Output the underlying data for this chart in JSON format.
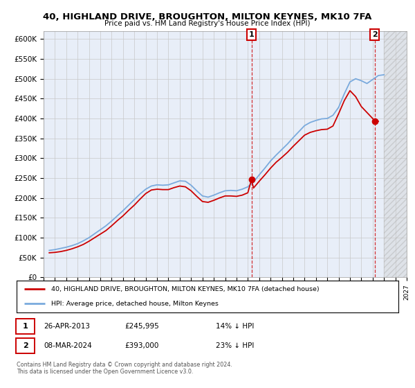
{
  "title": "40, HIGHLAND DRIVE, BROUGHTON, MILTON KEYNES, MK10 7FA",
  "subtitle": "Price paid vs. HM Land Registry's House Price Index (HPI)",
  "legend_label_red": "40, HIGHLAND DRIVE, BROUGHTON, MILTON KEYNES, MK10 7FA (detached house)",
  "legend_label_blue": "HPI: Average price, detached house, Milton Keynes",
  "annotation1_date": "26-APR-2013",
  "annotation1_price": "£245,995",
  "annotation1_pct": "14% ↓ HPI",
  "annotation2_date": "08-MAR-2024",
  "annotation2_price": "£393,000",
  "annotation2_pct": "23% ↓ HPI",
  "footnote": "Contains HM Land Registry data © Crown copyright and database right 2024.\nThis data is licensed under the Open Government Licence v3.0.",
  "ylim": [
    0,
    620000
  ],
  "yticks": [
    0,
    50000,
    100000,
    150000,
    200000,
    250000,
    300000,
    350000,
    400000,
    450000,
    500000,
    550000,
    600000
  ],
  "bg_color": "#e8eef8",
  "grid_color": "#c8c8c8",
  "red_color": "#cc0000",
  "blue_color": "#7aaadd",
  "sale1_x": 2013.32,
  "sale1_y": 245995,
  "sale2_x": 2024.18,
  "sale2_y": 393000,
  "hpi_x": [
    1995.5,
    1996.0,
    1996.5,
    1997.0,
    1997.5,
    1998.0,
    1998.5,
    1999.0,
    1999.5,
    2000.0,
    2000.5,
    2001.0,
    2001.5,
    2002.0,
    2002.5,
    2003.0,
    2003.5,
    2004.0,
    2004.5,
    2005.0,
    2005.5,
    2006.0,
    2006.5,
    2007.0,
    2007.5,
    2008.0,
    2008.5,
    2009.0,
    2009.5,
    2010.0,
    2010.5,
    2011.0,
    2011.5,
    2012.0,
    2012.5,
    2013.0,
    2013.5,
    2014.0,
    2014.5,
    2015.0,
    2015.5,
    2016.0,
    2016.5,
    2017.0,
    2017.5,
    2018.0,
    2018.5,
    2019.0,
    2019.5,
    2020.0,
    2020.5,
    2021.0,
    2021.5,
    2022.0,
    2022.5,
    2023.0,
    2023.5,
    2024.0,
    2024.5,
    2025.0
  ],
  "hpi_values": [
    68000,
    70000,
    73000,
    76000,
    80000,
    85000,
    92000,
    100000,
    110000,
    120000,
    130000,
    142000,
    155000,
    168000,
    182000,
    196000,
    210000,
    222000,
    230000,
    233000,
    232000,
    233000,
    238000,
    243000,
    242000,
    232000,
    218000,
    205000,
    202000,
    207000,
    213000,
    218000,
    219000,
    218000,
    222000,
    228000,
    240000,
    258000,
    275000,
    293000,
    308000,
    322000,
    336000,
    352000,
    367000,
    382000,
    390000,
    395000,
    399000,
    400000,
    408000,
    428000,
    462000,
    492000,
    500000,
    495000,
    488000,
    498000,
    508000,
    510000
  ],
  "red_x": [
    1995.5,
    1996.0,
    1996.5,
    1997.0,
    1997.5,
    1998.0,
    1998.5,
    1999.0,
    1999.5,
    2000.0,
    2000.5,
    2001.0,
    2001.5,
    2002.0,
    2002.5,
    2003.0,
    2003.5,
    2004.0,
    2004.5,
    2005.0,
    2005.5,
    2006.0,
    2006.5,
    2007.0,
    2007.5,
    2008.0,
    2008.5,
    2009.0,
    2009.5,
    2010.0,
    2010.5,
    2011.0,
    2011.5,
    2012.0,
    2012.5,
    2013.0,
    2013.32,
    2013.5,
    2014.0,
    2014.5,
    2015.0,
    2015.5,
    2016.0,
    2016.5,
    2017.0,
    2017.5,
    2018.0,
    2018.5,
    2019.0,
    2019.5,
    2020.0,
    2020.5,
    2021.0,
    2021.5,
    2022.0,
    2022.5,
    2023.0,
    2023.5,
    2024.0,
    2024.18,
    2024.5
  ],
  "red_values": [
    62000,
    63000,
    65000,
    68000,
    72000,
    77000,
    83000,
    91000,
    100000,
    109000,
    118000,
    130000,
    143000,
    155000,
    169000,
    182000,
    197000,
    211000,
    220000,
    222000,
    221000,
    221000,
    226000,
    230000,
    228000,
    218000,
    204000,
    191000,
    189000,
    194000,
    200000,
    205000,
    205000,
    204000,
    207000,
    213000,
    245995,
    225000,
    242000,
    258000,
    275000,
    290000,
    302000,
    315000,
    330000,
    344000,
    358000,
    365000,
    369000,
    372000,
    373000,
    381000,
    412000,
    445000,
    470000,
    455000,
    430000,
    415000,
    400000,
    393000,
    393000
  ],
  "xmin": 1995,
  "xmax": 2027,
  "hatch_start": 2025
}
